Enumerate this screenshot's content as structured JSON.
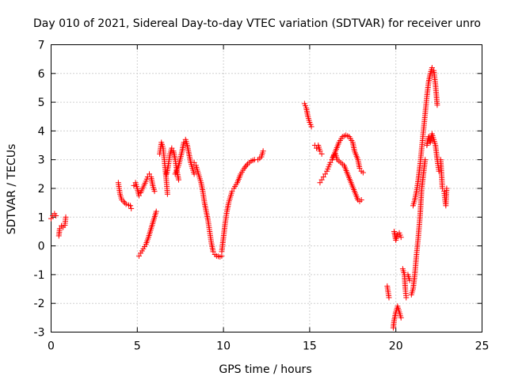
{
  "chart_data": {
    "type": "scatter",
    "title": "Day 010 of 2021, Sidereal Day-to-day VTEC variation (SDTVAR) for receiver unro",
    "xlabel": "GPS time / hours",
    "ylabel": "SDTVAR / TECUs",
    "xlim": [
      0,
      25
    ],
    "ylim": [
      -3,
      7
    ],
    "xticks": [
      "0",
      "5",
      "10",
      "15",
      "20",
      "25"
    ],
    "yticks": [
      "-3",
      "-2",
      "-1",
      "0",
      "1",
      "2",
      "3",
      "4",
      "5",
      "6",
      "7"
    ],
    "grid": true,
    "marker": "+",
    "color": "#ff0000",
    "series": [
      {
        "name": "SDTVAR",
        "segments": [
          [
            [
              0.0,
              0.95
            ],
            [
              0.1,
              1.05
            ],
            [
              0.2,
              1.12
            ],
            [
              0.28,
              1.05
            ]
          ],
          [
            [
              0.45,
              0.35
            ],
            [
              0.5,
              0.6
            ],
            [
              0.6,
              0.7
            ],
            [
              0.7,
              0.65
            ],
            [
              0.8,
              0.72
            ],
            [
              0.85,
              1.0
            ]
          ],
          [
            [
              3.9,
              2.2
            ],
            [
              4.0,
              1.8
            ],
            [
              4.1,
              1.6
            ],
            [
              4.2,
              1.55
            ],
            [
              4.35,
              1.45
            ],
            [
              4.5,
              1.42
            ],
            [
              4.6,
              1.4
            ],
            [
              4.65,
              1.3
            ]
          ],
          [
            [
              4.8,
              2.1
            ],
            [
              4.9,
              2.2
            ],
            [
              5.0,
              2.0
            ],
            [
              5.1,
              1.75
            ],
            [
              5.2,
              1.85
            ],
            [
              5.35,
              2.05
            ],
            [
              5.5,
              2.25
            ],
            [
              5.6,
              2.4
            ],
            [
              5.7,
              2.5
            ],
            [
              5.8,
              2.4
            ],
            [
              5.9,
              2.1
            ],
            [
              6.0,
              1.9
            ]
          ],
          [
            [
              5.1,
              -0.35
            ],
            [
              5.2,
              -0.25
            ],
            [
              5.35,
              -0.1
            ],
            [
              5.5,
              0.05
            ],
            [
              5.65,
              0.3
            ],
            [
              5.8,
              0.6
            ],
            [
              5.95,
              0.9
            ],
            [
              6.1,
              1.2
            ]
          ],
          [
            [
              6.3,
              3.2
            ],
            [
              6.4,
              3.6
            ],
            [
              6.5,
              3.4
            ],
            [
              6.6,
              2.8
            ],
            [
              6.7,
              2.2
            ],
            [
              6.75,
              1.8
            ]
          ],
          [
            [
              6.7,
              2.5
            ],
            [
              6.8,
              2.8
            ],
            [
              6.9,
              3.2
            ],
            [
              7.0,
              3.4
            ],
            [
              7.1,
              3.3
            ],
            [
              7.2,
              3.0
            ],
            [
              7.3,
              2.6
            ],
            [
              7.4,
              2.3
            ]
          ],
          [
            [
              7.2,
              2.5
            ],
            [
              7.4,
              2.8
            ],
            [
              7.6,
              3.3
            ],
            [
              7.7,
              3.6
            ],
            [
              7.8,
              3.7
            ],
            [
              7.9,
              3.5
            ],
            [
              8.0,
              3.2
            ],
            [
              8.1,
              2.9
            ],
            [
              8.2,
              2.7
            ],
            [
              8.3,
              2.5
            ]
          ],
          [
            [
              8.3,
              2.9
            ],
            [
              8.4,
              2.8
            ],
            [
              8.5,
              2.6
            ],
            [
              8.6,
              2.4
            ],
            [
              8.7,
              2.2
            ],
            [
              8.8,
              1.9
            ],
            [
              8.9,
              1.5
            ],
            [
              9.0,
              1.2
            ],
            [
              9.1,
              0.9
            ],
            [
              9.2,
              0.5
            ],
            [
              9.3,
              0.1
            ],
            [
              9.4,
              -0.2
            ],
            [
              9.5,
              -0.3
            ],
            [
              9.6,
              -0.35
            ],
            [
              9.8,
              -0.38
            ],
            [
              9.9,
              -0.35
            ]
          ],
          [
            [
              9.9,
              -0.2
            ],
            [
              10.0,
              0.3
            ],
            [
              10.1,
              0.8
            ],
            [
              10.2,
              1.2
            ],
            [
              10.3,
              1.5
            ],
            [
              10.4,
              1.7
            ],
            [
              10.5,
              1.9
            ],
            [
              10.6,
              2.0
            ],
            [
              10.8,
              2.2
            ],
            [
              11.0,
              2.5
            ],
            [
              11.2,
              2.7
            ],
            [
              11.4,
              2.85
            ],
            [
              11.6,
              2.95
            ],
            [
              11.8,
              3.0
            ],
            [
              12.0,
              3.0
            ],
            [
              12.2,
              3.1
            ],
            [
              12.3,
              3.3
            ]
          ],
          [
            [
              14.7,
              4.95
            ],
            [
              14.8,
              4.8
            ],
            [
              14.9,
              4.5
            ],
            [
              15.0,
              4.3
            ],
            [
              15.1,
              4.15
            ]
          ],
          [
            [
              15.3,
              3.5
            ],
            [
              15.4,
              3.4
            ],
            [
              15.5,
              3.5
            ],
            [
              15.6,
              3.3
            ],
            [
              15.7,
              3.2
            ]
          ],
          [
            [
              15.6,
              2.2
            ],
            [
              15.7,
              2.3
            ],
            [
              15.8,
              2.4
            ],
            [
              15.9,
              2.5
            ],
            [
              16.0,
              2.6
            ],
            [
              16.1,
              2.75
            ],
            [
              16.2,
              2.9
            ],
            [
              16.3,
              3.0
            ],
            [
              16.4,
              3.15
            ]
          ],
          [
            [
              16.3,
              3.0
            ],
            [
              16.5,
              3.3
            ],
            [
              16.7,
              3.6
            ],
            [
              16.9,
              3.8
            ],
            [
              17.1,
              3.85
            ],
            [
              17.3,
              3.8
            ],
            [
              17.5,
              3.6
            ],
            [
              17.6,
              3.3
            ],
            [
              17.8,
              3.0
            ],
            [
              17.9,
              2.7
            ],
            [
              18.0,
              2.6
            ],
            [
              18.1,
              2.55
            ]
          ],
          [
            [
              16.5,
              3.2
            ],
            [
              16.6,
              3.0
            ],
            [
              16.8,
              2.9
            ],
            [
              17.0,
              2.8
            ],
            [
              17.2,
              2.5
            ],
            [
              17.4,
              2.2
            ],
            [
              17.6,
              1.9
            ],
            [
              17.8,
              1.6
            ],
            [
              17.9,
              1.55
            ],
            [
              18.0,
              1.6
            ]
          ],
          [
            [
              19.5,
              -1.4
            ],
            [
              19.6,
              -1.8
            ]
          ],
          [
            [
              19.85,
              -2.85
            ],
            [
              19.9,
              -2.6
            ],
            [
              20.0,
              -2.3
            ],
            [
              20.1,
              -2.1
            ],
            [
              20.2,
              -2.3
            ],
            [
              20.3,
              -2.5
            ]
          ],
          [
            [
              19.9,
              0.5
            ],
            [
              20.0,
              0.2
            ],
            [
              20.1,
              0.4
            ],
            [
              20.2,
              0.45
            ],
            [
              20.3,
              0.3
            ]
          ],
          [
            [
              20.4,
              -0.8
            ],
            [
              20.5,
              -1.0
            ],
            [
              20.55,
              -1.5
            ],
            [
              20.6,
              -1.8
            ]
          ],
          [
            [
              20.7,
              -1.0
            ],
            [
              20.8,
              -1.2
            ]
          ],
          [
            [
              20.9,
              -1.7
            ],
            [
              21.0,
              -1.5
            ],
            [
              21.1,
              -1.0
            ],
            [
              21.2,
              -0.3
            ],
            [
              21.3,
              0.3
            ],
            [
              21.4,
              1.0
            ],
            [
              21.5,
              2.0
            ],
            [
              21.6,
              2.5
            ],
            [
              21.7,
              3.0
            ]
          ],
          [
            [
              21.0,
              1.4
            ],
            [
              21.1,
              1.6
            ],
            [
              21.2,
              1.9
            ],
            [
              21.3,
              2.3
            ],
            [
              21.4,
              2.8
            ],
            [
              21.5,
              3.4
            ],
            [
              21.6,
              4.0
            ],
            [
              21.7,
              4.6
            ],
            [
              21.8,
              5.2
            ],
            [
              21.9,
              5.7
            ],
            [
              22.0,
              6.0
            ],
            [
              22.1,
              6.2
            ],
            [
              22.2,
              6.1
            ],
            [
              22.3,
              5.6
            ],
            [
              22.4,
              4.9
            ]
          ],
          [
            [
              21.8,
              3.5
            ],
            [
              21.9,
              3.8
            ],
            [
              22.0,
              3.6
            ],
            [
              22.1,
              3.9
            ],
            [
              22.2,
              3.7
            ],
            [
              22.3,
              3.5
            ],
            [
              22.4,
              3.0
            ],
            [
              22.5,
              2.6
            ]
          ],
          [
            [
              22.6,
              3.0
            ],
            [
              22.7,
              2.0
            ],
            [
              22.8,
              1.9
            ],
            [
              22.85,
              1.6
            ],
            [
              22.9,
              1.4
            ],
            [
              22.95,
              2.0
            ]
          ]
        ]
      }
    ]
  }
}
